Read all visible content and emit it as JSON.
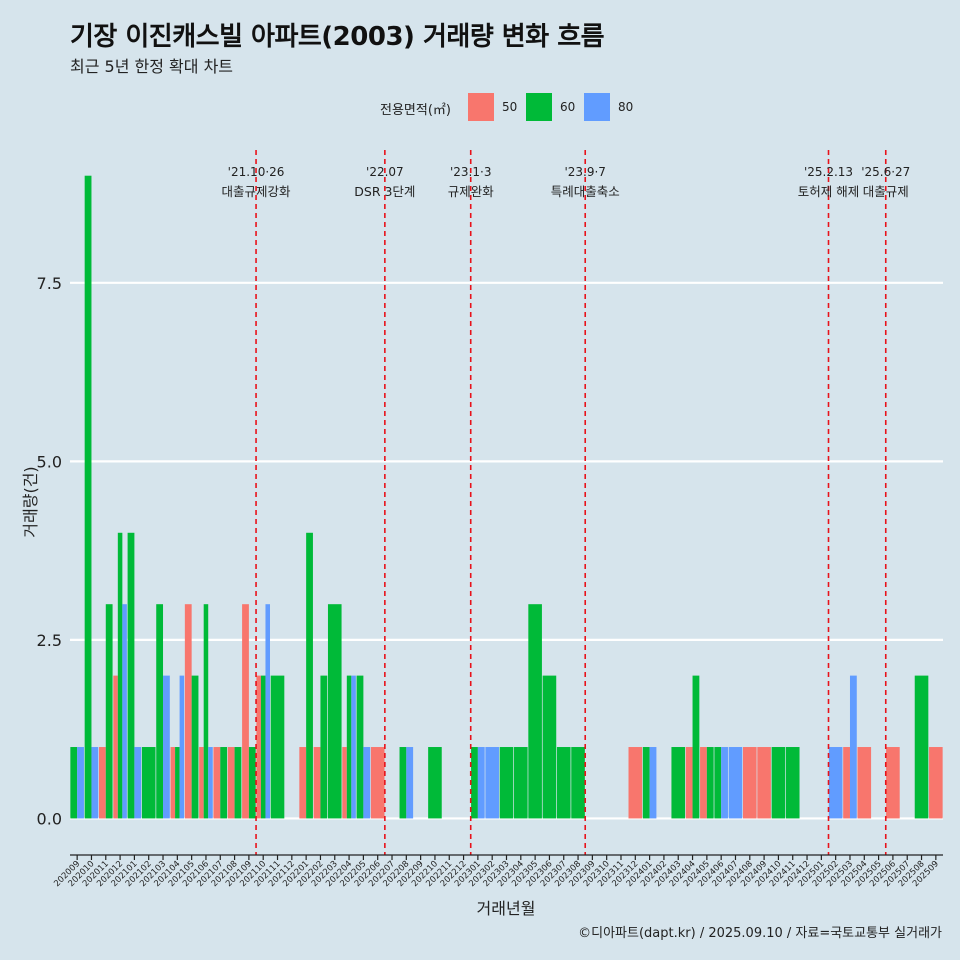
{
  "title": "기장 이진캐스빌 아파트(2003) 거래량 변화 흐름",
  "subtitle": "최근 5년 한정 확대 차트",
  "footer": "©디아파트(dapt.kr) / 2025.09.10 / 자료=국토교통부 실거래가",
  "legend": {
    "title": "전용면적(㎡)",
    "items": [
      {
        "label": "50",
        "color": "#f8766d"
      },
      {
        "label": "60",
        "color": "#00ba38"
      },
      {
        "label": "80",
        "color": "#619cff"
      }
    ]
  },
  "chart_data": {
    "type": "bar",
    "xlabel": "거래년월",
    "ylabel": "거래량(건)",
    "ylim": [
      -0.4,
      9.5
    ],
    "yticks": [
      "0.0",
      "2.5",
      "5.0",
      "7.5"
    ],
    "ytick_values": [
      0,
      2.5,
      5,
      7.5
    ],
    "grid": true,
    "legend_position": "top",
    "categories": [
      "202009",
      "202010",
      "202011",
      "202012",
      "202101",
      "202102",
      "202103",
      "202104",
      "202105",
      "202106",
      "202107",
      "202108",
      "202109",
      "202110",
      "202111",
      "202112",
      "202201",
      "202202",
      "202203",
      "202204",
      "202205",
      "202206",
      "202207",
      "202208",
      "202209",
      "202210",
      "202211",
      "202212",
      "202301",
      "202302",
      "202303",
      "202304",
      "202305",
      "202306",
      "202307",
      "202308",
      "202309",
      "202310",
      "202311",
      "202312",
      "202401",
      "202402",
      "202403",
      "202404",
      "202405",
      "202406",
      "202407",
      "202408",
      "202409",
      "202410",
      "202411",
      "202412",
      "202501",
      "202502",
      "202503",
      "202504",
      "202505",
      "202506",
      "202507",
      "202508",
      "202509"
    ],
    "series": [
      {
        "name": "50",
        "color": "#f8766d",
        "values": [
          0,
          0,
          1,
          2,
          0,
          0,
          0,
          1,
          3,
          1,
          1,
          1,
          3,
          2,
          0,
          0,
          1,
          1,
          0,
          1,
          0,
          1,
          0,
          0,
          0,
          0,
          0,
          0,
          0,
          0,
          0,
          0,
          0,
          0,
          0,
          0,
          0,
          0,
          0,
          1,
          0,
          0,
          0,
          1,
          1,
          0,
          0,
          1,
          1,
          0,
          0,
          0,
          0,
          0,
          1,
          1,
          0,
          1,
          0,
          0,
          1
        ]
      },
      {
        "name": "60",
        "color": "#00ba38",
        "values": [
          1,
          9,
          3,
          4,
          4,
          1,
          3,
          1,
          2,
          3,
          1,
          1,
          1,
          2,
          2,
          0,
          4,
          2,
          3,
          2,
          2,
          0,
          0,
          1,
          0,
          1,
          0,
          0,
          1,
          0,
          1,
          1,
          3,
          2,
          1,
          1,
          0,
          0,
          0,
          0,
          1,
          0,
          1,
          2,
          1,
          1,
          0,
          0,
          0,
          1,
          1,
          0,
          0,
          0,
          0,
          0,
          0,
          0,
          0,
          2,
          0
        ]
      },
      {
        "name": "80",
        "color": "#619cff",
        "values": [
          1,
          1,
          0,
          3,
          1,
          0,
          2,
          2,
          0,
          1,
          0,
          0,
          0,
          3,
          0,
          0,
          0,
          0,
          0,
          2,
          1,
          0,
          0,
          1,
          0,
          0,
          0,
          0,
          1,
          1,
          0,
          0,
          0,
          0,
          0,
          0,
          0,
          0,
          0,
          0,
          1,
          0,
          0,
          0,
          0,
          1,
          1,
          0,
          0,
          0,
          0,
          0,
          0,
          1,
          2,
          0,
          0,
          0,
          0,
          0,
          0
        ]
      }
    ],
    "annotations": [
      {
        "date": "'21.10·26",
        "label": "대출규제강화",
        "x_index": 13
      },
      {
        "date": "'22.07",
        "label": "DSR 3단계",
        "x_index": 22
      },
      {
        "date": "'23.1·3",
        "label": "규제완화",
        "x_index": 28
      },
      {
        "date": "'23.9·7",
        "label": "특례대출축소",
        "x_index": 36
      },
      {
        "date": "'25.2.13",
        "label": "토허제 해제",
        "x_index": 53
      },
      {
        "date": "'25.6·27",
        "label": "대출규제",
        "x_index": 57
      }
    ]
  }
}
